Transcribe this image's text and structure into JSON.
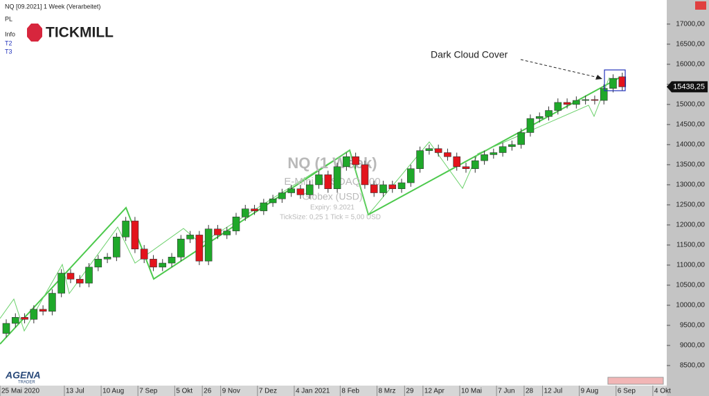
{
  "header": {
    "lines": [
      "NQ [09.2021] 1 Week (Verarbeitet)",
      "PL",
      "Info",
      "T2",
      "T3"
    ],
    "logo": "TICKMILL"
  },
  "footer_logo": {
    "top": "AGENA",
    "bottom": "TRADER"
  },
  "watermark": {
    "title": "NQ (1 Week)",
    "instrument": "E-Mini NASDAQ 100",
    "exchange": "Globex  (USD)",
    "expiry": "Expiry: 9.2021",
    "ticksize": "TickSize: 0,25   1 Tick = 5,00 USD"
  },
  "chart_data": {
    "type": "candlestick",
    "annotation": "Dark Cloud Cover",
    "up_color": "#1fa82a",
    "down_color": "#e3141c",
    "ylim": [
      8000,
      17600
    ],
    "yticks": [
      {
        "value": 8500,
        "label": "8500,00"
      },
      {
        "value": 9000,
        "label": "9000,00"
      },
      {
        "value": 9500,
        "label": "9500,00"
      },
      {
        "value": 10000,
        "label": "10000,00"
      },
      {
        "value": 10500,
        "label": "10500,00"
      },
      {
        "value": 11000,
        "label": "11000,00"
      },
      {
        "value": 11500,
        "label": "11500,00"
      },
      {
        "value": 12000,
        "label": "12000,00"
      },
      {
        "value": 12500,
        "label": "12500,00"
      },
      {
        "value": 13000,
        "label": "13000,00"
      },
      {
        "value": 13500,
        "label": "13500,00"
      },
      {
        "value": 14000,
        "label": "14000,00"
      },
      {
        "value": 14500,
        "label": "14500,00"
      },
      {
        "value": 15000,
        "label": "15000,00"
      },
      {
        "value": 15500,
        "label": "15500,00"
      },
      {
        "value": 16000,
        "label": "16000,00"
      },
      {
        "value": 16500,
        "label": "16500,00"
      },
      {
        "value": 17000,
        "label": "17000,00"
      }
    ],
    "last_price": {
      "value": 15438.25,
      "label": "15438,25"
    },
    "categories": [
      "25 Mai 2020",
      null,
      null,
      null,
      null,
      null,
      null,
      "13 Jul",
      null,
      null,
      null,
      "10 Aug",
      null,
      null,
      null,
      "7 Sep",
      null,
      null,
      null,
      "5 Okt",
      null,
      null,
      "26",
      null,
      "9 Nov",
      null,
      null,
      null,
      "7 Dez",
      null,
      null,
      null,
      "4 Jan 2021",
      null,
      null,
      null,
      null,
      "8 Feb",
      null,
      null,
      null,
      "8 Mrz",
      null,
      null,
      "29",
      null,
      "12 Apr",
      null,
      null,
      null,
      "10 Mai",
      null,
      null,
      null,
      "7 Jun",
      null,
      null,
      "28",
      null,
      "12 Jul",
      null,
      null,
      null,
      "9 Aug",
      null,
      null,
      null,
      "6 Sep",
      null,
      null,
      null,
      "4 Okt"
    ],
    "open": [
      9300,
      9550,
      9700,
      9650,
      9900,
      9850,
      10300,
      10800,
      10650,
      10550,
      10950,
      11150,
      11200,
      11700,
      12100,
      11400,
      11150,
      10950,
      11050,
      11200,
      11650,
      11750,
      11100,
      11900,
      11750,
      11850,
      12200,
      12400,
      12350,
      12550,
      12650,
      12800,
      12900,
      12750,
      13000,
      13250,
      12900,
      13450,
      13700,
      13500,
      13000,
      12800,
      13000,
      12900,
      13050,
      13400,
      13850,
      13900,
      13800,
      13700,
      13450,
      13400,
      13600,
      13750,
      13800,
      13950,
      14000,
      14300,
      14650,
      14700,
      14850,
      15050,
      15000,
      15100,
      15120,
      15100,
      15400,
      15690,
      null,
      null,
      null,
      null
    ],
    "high": [
      9650,
      9800,
      9800,
      10000,
      10000,
      10400,
      10900,
      10900,
      10750,
      11050,
      11250,
      11300,
      11800,
      12200,
      12200,
      11500,
      11250,
      11150,
      11300,
      11750,
      11850,
      11850,
      12000,
      12000,
      11950,
      12300,
      12500,
      12500,
      12650,
      12750,
      12900,
      13000,
      13000,
      13100,
      13350,
      13350,
      13550,
      13800,
      13800,
      13600,
      13100,
      13100,
      13100,
      13150,
      13500,
      13950,
      14000,
      14000,
      13900,
      13800,
      13550,
      13700,
      13850,
      13900,
      14050,
      14100,
      14400,
      14750,
      14800,
      14950,
      15150,
      15150,
      15200,
      15220,
      15220,
      15500,
      15750,
      15790,
      null,
      null,
      null,
      null
    ],
    "low": [
      9200,
      9450,
      9550,
      9550,
      9750,
      9750,
      10200,
      10550,
      10450,
      10450,
      10850,
      11050,
      11100,
      11600,
      11300,
      11050,
      10850,
      10850,
      10950,
      11100,
      11550,
      11000,
      11000,
      11650,
      11650,
      11750,
      12100,
      12250,
      12250,
      12450,
      12550,
      12700,
      12650,
      12650,
      12900,
      12800,
      12800,
      13350,
      13400,
      12900,
      12700,
      12700,
      12800,
      12800,
      12950,
      13300,
      13750,
      13700,
      13600,
      13350,
      13300,
      13300,
      13500,
      13650,
      13700,
      13850,
      13900,
      14200,
      14550,
      14600,
      14750,
      14900,
      14900,
      15000,
      15000,
      15000,
      15300,
      15338.25,
      null,
      null,
      null,
      null
    ],
    "close": [
      9550,
      9700,
      9650,
      9900,
      9850,
      10300,
      10800,
      10650,
      10550,
      10950,
      11150,
      11200,
      11700,
      12100,
      11400,
      11150,
      10950,
      11050,
      11200,
      11650,
      11750,
      11100,
      11900,
      11750,
      11850,
      12200,
      12400,
      12350,
      12550,
      12650,
      12800,
      12900,
      12750,
      13000,
      13250,
      12900,
      13450,
      13700,
      13500,
      13000,
      12800,
      13000,
      12900,
      13050,
      13400,
      13850,
      13900,
      13800,
      13700,
      13450,
      13400,
      13600,
      13750,
      13800,
      13950,
      14000,
      14300,
      14650,
      14700,
      14850,
      15050,
      15000,
      15100,
      15120,
      15100,
      15400,
      15650,
      15438.25,
      null,
      null,
      null,
      null
    ]
  }
}
